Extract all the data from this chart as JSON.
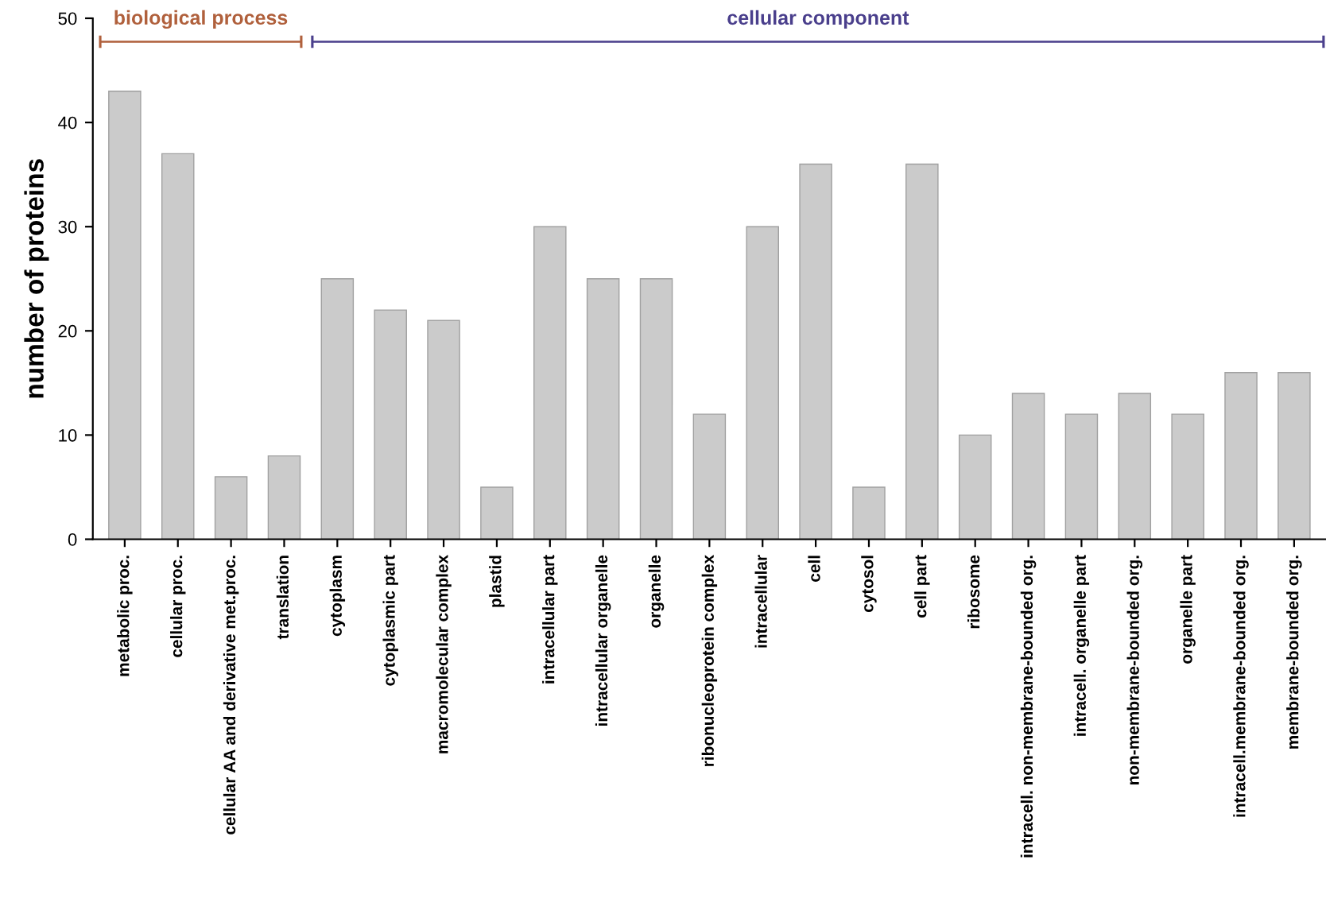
{
  "chart_data": {
    "type": "bar",
    "ylabel": "number of proteins",
    "categories": [
      "metabolic proc.",
      "cellular proc.",
      "cellular AA and derivative met.proc.",
      "translation",
      "cytoplasm",
      "cytoplasmic part",
      "macromolecular complex",
      "plastid",
      "intracellular part",
      "intracellular organelle",
      "organelle",
      "ribonucleoprotein complex",
      "intracellular",
      "cell",
      "cytosol",
      "cell part",
      "ribosome",
      "intracell. non-membrane-bounded org.",
      "intracell. organelle part",
      "non-membrane-bounded org.",
      "organelle part",
      "intracell.membrane-bounded org.",
      "membrane-bounded org."
    ],
    "values": [
      43,
      37,
      6,
      8,
      25,
      22,
      21,
      5,
      30,
      25,
      25,
      12,
      30,
      36,
      5,
      36,
      10,
      14,
      12,
      14,
      12,
      16,
      16
    ],
    "color": "#cbcbcb",
    "ylim": [
      0,
      50
    ],
    "yticks": [
      0,
      10,
      20,
      30,
      40,
      50
    ],
    "grid": false,
    "annotations": [
      "biological process",
      "cellular component"
    ]
  }
}
